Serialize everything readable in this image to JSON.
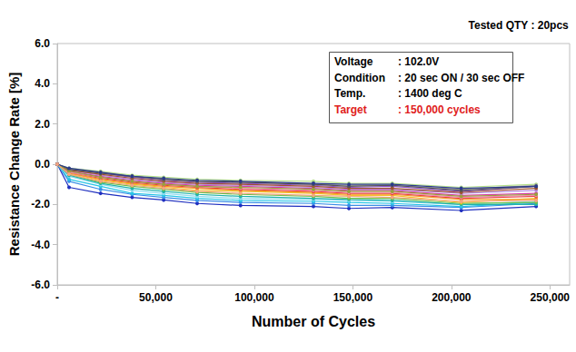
{
  "chart_data": {
    "type": "line",
    "subtitle": "Tested QTY : 20pcs",
    "x_label": "Number of Cycles",
    "y_label": "Resistance Change Rate [%]",
    "annotations": [
      {
        "label": "Voltage",
        "text": ": 102.0V"
      },
      {
        "label": "Condition",
        "text": ": 20 sec ON / 30 sec OFF"
      },
      {
        "label": "Temp.",
        "text": ": 1400 deg C"
      },
      {
        "label": "Target",
        "text": ": 150,000 cycles",
        "color": "#e02020"
      }
    ],
    "x": [
      0,
      6000,
      22000,
      38000,
      54000,
      71000,
      93000,
      130000,
      148000,
      170000,
      205000,
      243000
    ],
    "xlim": [
      0,
      260000
    ],
    "xticks": [
      {
        "value": 0,
        "label": "-"
      },
      {
        "value": 50000,
        "label": "50,000"
      },
      {
        "value": 100000,
        "label": "100,000"
      },
      {
        "value": 150000,
        "label": "150,000"
      },
      {
        "value": 200000,
        "label": "200,000"
      },
      {
        "value": 250000,
        "label": "250,000"
      }
    ],
    "ylim": [
      -6,
      6
    ],
    "yticks": [
      {
        "value": -6,
        "label": "-6.0"
      },
      {
        "value": -4,
        "label": "-4.0"
      },
      {
        "value": -2,
        "label": "-2.0"
      },
      {
        "value": 0,
        "label": "0.0"
      },
      {
        "value": 2,
        "label": "2.0"
      },
      {
        "value": 4,
        "label": "4.0"
      },
      {
        "value": 6,
        "label": "6.0"
      }
    ],
    "grid": false,
    "marker": "circle",
    "series": [
      {
        "color": "#1f2fbf",
        "values": [
          0,
          -1.15,
          -1.45,
          -1.65,
          -1.78,
          -1.95,
          -2.05,
          -2.1,
          -2.2,
          -2.15,
          -2.3,
          -2.1
        ]
      },
      {
        "color": "#3a8ee6",
        "values": [
          0,
          -0.85,
          -1.25,
          -1.5,
          -1.65,
          -1.8,
          -1.9,
          -1.95,
          -2.05,
          -2.05,
          -2.15,
          -1.95
        ]
      },
      {
        "color": "#29c5e6",
        "values": [
          0,
          -0.75,
          -1.1,
          -1.45,
          -1.55,
          -1.7,
          -1.8,
          -1.85,
          -1.9,
          -1.95,
          -2.1,
          -1.9
        ]
      },
      {
        "color": "#8fdcef",
        "values": [
          0,
          -0.6,
          -1.0,
          -1.3,
          -1.45,
          -1.6,
          -1.7,
          -1.75,
          -1.8,
          -1.85,
          -2.0,
          -1.85
        ]
      },
      {
        "color": "#20b2aa",
        "values": [
          0,
          -0.55,
          -0.95,
          -1.2,
          -1.35,
          -1.5,
          -1.6,
          -1.7,
          -1.75,
          -1.8,
          -2.0,
          -2.0
        ]
      },
      {
        "color": "#6cc04a",
        "values": [
          0,
          -0.5,
          -0.9,
          -1.1,
          -1.25,
          -1.4,
          -1.5,
          -1.6,
          -1.7,
          -1.7,
          -1.95,
          -1.9
        ]
      },
      {
        "color": "#b5e08a",
        "values": [
          0,
          -0.2,
          -0.35,
          -0.55,
          -0.65,
          -0.75,
          -0.8,
          -0.85,
          -0.95,
          -0.95,
          -1.15,
          -1.0
        ]
      },
      {
        "color": "#f2c12e",
        "values": [
          0,
          -0.45,
          -0.8,
          -1.0,
          -1.15,
          -1.3,
          -1.35,
          -1.45,
          -1.55,
          -1.55,
          -1.9,
          -1.7
        ]
      },
      {
        "color": "#f59a23",
        "values": [
          0,
          -0.45,
          -0.75,
          -0.95,
          -1.1,
          -1.2,
          -1.3,
          -1.4,
          -1.5,
          -1.5,
          -1.75,
          -1.75
        ]
      },
      {
        "color": "#e8403a",
        "values": [
          0,
          -0.4,
          -0.7,
          -0.9,
          -1.05,
          -1.15,
          -1.25,
          -1.35,
          -1.45,
          -1.45,
          -1.7,
          -1.6
        ]
      },
      {
        "color": "#f28db2",
        "values": [
          0,
          -0.4,
          -0.65,
          -0.85,
          -1.0,
          -1.1,
          -1.2,
          -1.3,
          -1.4,
          -1.4,
          -1.65,
          -1.55
        ]
      },
      {
        "color": "#d63ca8",
        "values": [
          0,
          -0.35,
          -0.6,
          -0.8,
          -0.95,
          -1.05,
          -1.1,
          -1.2,
          -1.3,
          -1.3,
          -1.55,
          -1.45
        ]
      },
      {
        "color": "#8a4fc9",
        "values": [
          0,
          -0.25,
          -0.45,
          -0.65,
          -0.8,
          -0.9,
          -0.95,
          -1.05,
          -1.15,
          -1.1,
          -1.35,
          -1.1
        ]
      },
      {
        "color": "#b38be0",
        "values": [
          0,
          -0.3,
          -0.55,
          -0.75,
          -0.9,
          -1.0,
          -1.05,
          -1.15,
          -1.25,
          -1.25,
          -1.45,
          -1.3
        ]
      },
      {
        "color": "#a0522d",
        "values": [
          0,
          -0.3,
          -0.5,
          -0.7,
          -0.85,
          -0.95,
          -1.0,
          -1.1,
          -1.2,
          -1.2,
          -1.4,
          -1.2
        ]
      },
      {
        "color": "#9e9e9e",
        "values": [
          0,
          -0.25,
          -0.4,
          -0.6,
          -0.75,
          -0.85,
          -0.9,
          -1.0,
          -1.05,
          -1.05,
          -1.25,
          -1.05
        ]
      },
      {
        "color": "#555555",
        "values": [
          0,
          -0.25,
          -0.45,
          -0.6,
          -0.75,
          -0.85,
          -0.9,
          -1.0,
          -1.1,
          -1.05,
          -1.3,
          -1.1
        ]
      },
      {
        "color": "#9aa03a",
        "values": [
          0,
          -0.35,
          -0.65,
          -0.85,
          -1.0,
          -1.1,
          -1.15,
          -1.25,
          -1.35,
          -1.35,
          -1.6,
          -1.5
        ]
      },
      {
        "color": "#2b3a8c",
        "values": [
          0,
          -0.2,
          -0.4,
          -0.6,
          -0.7,
          -0.8,
          -0.85,
          -0.95,
          -1.0,
          -1.0,
          -1.2,
          -1.1
        ]
      },
      {
        "color": "#f4a582",
        "values": [
          0,
          -0.5,
          -0.85,
          -1.05,
          -1.2,
          -1.35,
          -1.45,
          -1.55,
          -1.6,
          -1.65,
          -1.85,
          -1.8
        ]
      }
    ]
  }
}
